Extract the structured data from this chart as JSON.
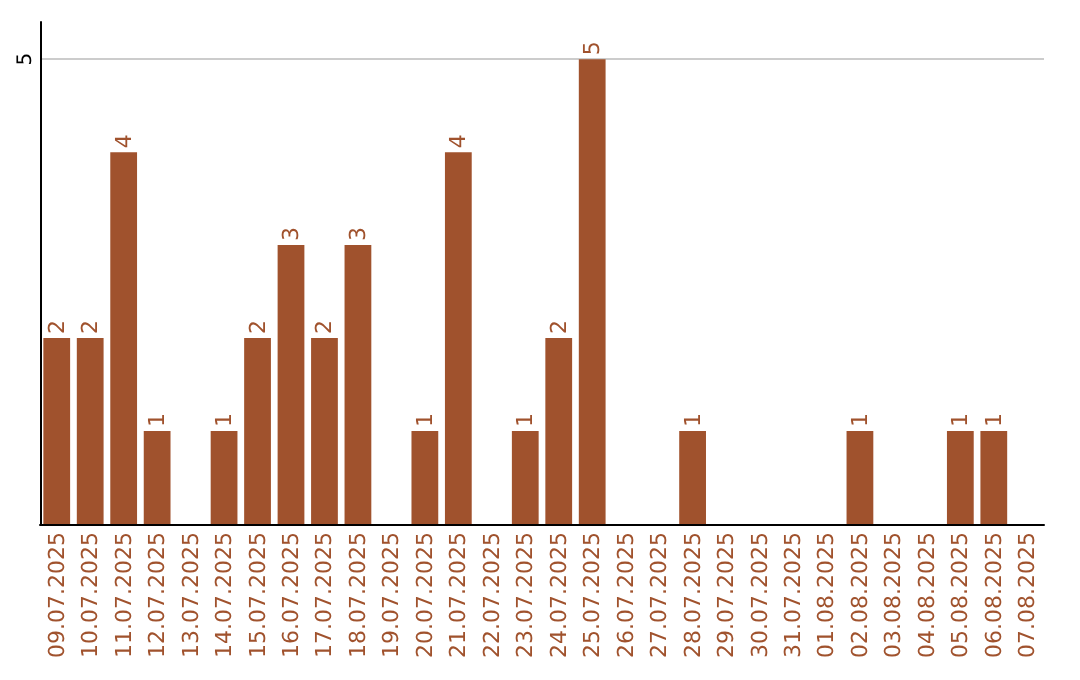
{
  "chart_data": {
    "type": "bar",
    "categories": [
      "09.07.2025",
      "10.07.2025",
      "11.07.2025",
      "12.07.2025",
      "13.07.2025",
      "14.07.2025",
      "15.07.2025",
      "16.07.2025",
      "17.07.2025",
      "18.07.2025",
      "19.07.2025",
      "20.07.2025",
      "21.07.2025",
      "22.07.2025",
      "23.07.2025",
      "24.07.2025",
      "25.07.2025",
      "26.07.2025",
      "27.07.2025",
      "28.07.2025",
      "29.07.2025",
      "30.07.2025",
      "31.07.2025",
      "01.08.2025",
      "02.08.2025",
      "03.08.2025",
      "04.08.2025",
      "05.08.2025",
      "06.08.2025",
      "07.08.2025"
    ],
    "values": [
      2,
      2,
      4,
      1,
      0,
      1,
      2,
      3,
      2,
      3,
      0,
      1,
      4,
      0,
      1,
      2,
      5,
      0,
      0,
      1,
      0,
      0,
      0,
      0,
      1,
      0,
      0,
      1,
      1,
      0
    ],
    "value_labels": [
      "2",
      "2",
      "4",
      "1",
      null,
      "1",
      "2",
      "3",
      "2",
      "3",
      null,
      "1",
      "4",
      null,
      "1",
      "2",
      "5",
      null,
      null,
      "1",
      null,
      null,
      null,
      null,
      "1",
      null,
      null,
      "1",
      "1",
      null
    ],
    "color": "#a0522d",
    "ylim": [
      0,
      5.4
    ],
    "yticks": [
      5
    ],
    "grid": "y"
  }
}
